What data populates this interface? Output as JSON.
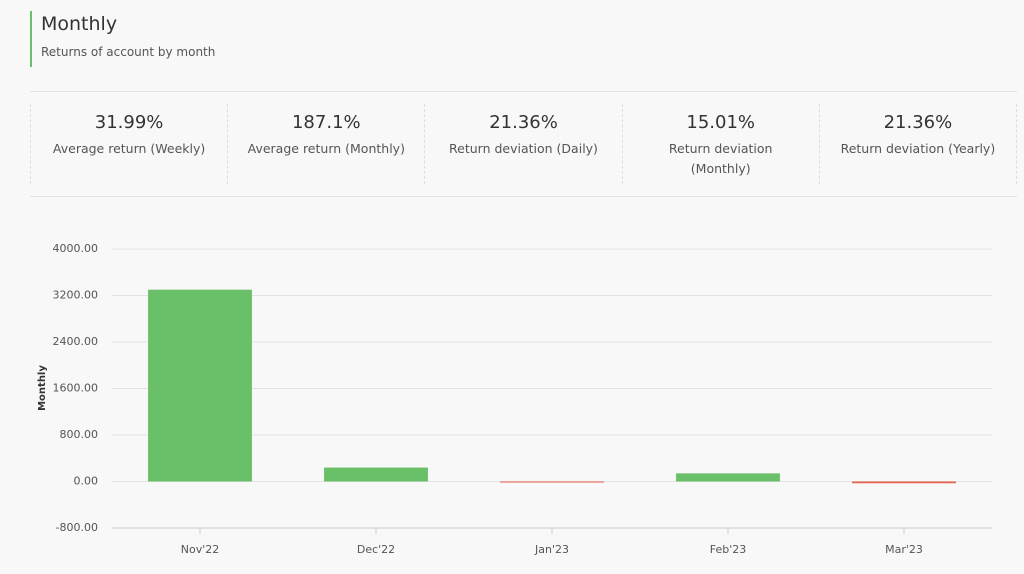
{
  "header": {
    "title": "Monthly",
    "subtitle": "Returns of account by month"
  },
  "stats": [
    {
      "value": "31.99%",
      "label": "Average return (Weekly)"
    },
    {
      "value": "187.1%",
      "label": "Average return (Monthly)"
    },
    {
      "value": "21.36%",
      "label": "Return deviation (Daily)"
    },
    {
      "value": "15.01%",
      "label": "Return deviation (Monthly)"
    },
    {
      "value": "21.36%",
      "label": "Return deviation (Yearly)"
    }
  ],
  "chart_data": {
    "type": "bar",
    "y_label": "Monthly",
    "categories": [
      "Nov'22",
      "Dec'22",
      "Jan'23",
      "Feb'23",
      "Mar'23"
    ],
    "values": [
      3300,
      240,
      -10,
      140,
      -30
    ],
    "color": "#6abf69",
    "negative_color": "#e8604c",
    "ylim": [
      -800,
      4000
    ],
    "yticks": [
      {
        "value": -800,
        "label": "-800.00"
      },
      {
        "value": 0,
        "label": "0.00"
      },
      {
        "value": 800,
        "label": "800.00"
      },
      {
        "value": 1600,
        "label": "1600.00"
      },
      {
        "value": 2400,
        "label": "2400.00"
      },
      {
        "value": 3200,
        "label": "3200.00"
      },
      {
        "value": 4000,
        "label": "4000.00"
      }
    ],
    "grid": true
  }
}
